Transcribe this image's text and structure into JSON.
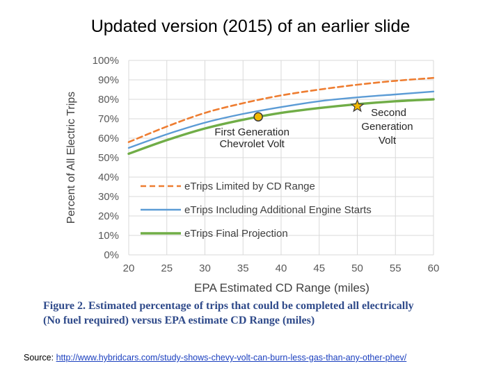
{
  "slide": {
    "title": "Updated version (2015) of an earlier slide",
    "caption_line1": "Figure 2. Estimated percentage of trips that could be completed all electrically",
    "caption_line2": "(No fuel required) versus EPA estimate CD Range (miles)",
    "source_label": "Source:",
    "source_url": "http://www.hybridcars.com/study-shows-chevy-volt-can-burn-less-gas-than-any-other-phev/"
  },
  "chart_data": {
    "type": "line",
    "title": "",
    "xlabel": "EPA Estimated CD Range (miles)",
    "ylabel": "Percent of All Electric Trips",
    "xlim": [
      20,
      60
    ],
    "ylim": [
      0,
      100
    ],
    "x_ticks": [
      20,
      25,
      30,
      35,
      40,
      45,
      50,
      55,
      60
    ],
    "y_ticks": [
      0,
      10,
      20,
      30,
      40,
      50,
      60,
      70,
      80,
      90,
      100
    ],
    "y_tick_suffix": "%",
    "grid": true,
    "legend_position": "bottom-left inside plot",
    "x": [
      20,
      25,
      30,
      35,
      40,
      45,
      50,
      55,
      60
    ],
    "series": [
      {
        "name": "eTrips Limited by CD Range",
        "style": "dashed",
        "color": "#ee7d31",
        "values": [
          58,
          66,
          73,
          78,
          82,
          85,
          87.5,
          89.5,
          91
        ]
      },
      {
        "name": "eTrips Including Additional Engine Starts",
        "style": "solid",
        "color": "#5b9bd5",
        "values": [
          55,
          62,
          68,
          72.5,
          76,
          79,
          81,
          82.5,
          84
        ]
      },
      {
        "name": "eTrips Final Projection",
        "style": "solid-thick",
        "color": "#70ad47",
        "values": [
          52,
          59,
          65,
          69.5,
          73,
          75.5,
          77.5,
          79,
          80
        ]
      }
    ],
    "annotations": [
      {
        "label_line1": "First Generation",
        "label_line2": "Chevrolet Volt",
        "marker": "circle",
        "x": 37,
        "y": 71,
        "color": "#f2b800"
      },
      {
        "label_line1": "Second",
        "label_line2": "Generation",
        "label_line3": "Volt",
        "marker": "star",
        "x": 50,
        "y": 76.5,
        "color": "#f2b800"
      }
    ]
  }
}
